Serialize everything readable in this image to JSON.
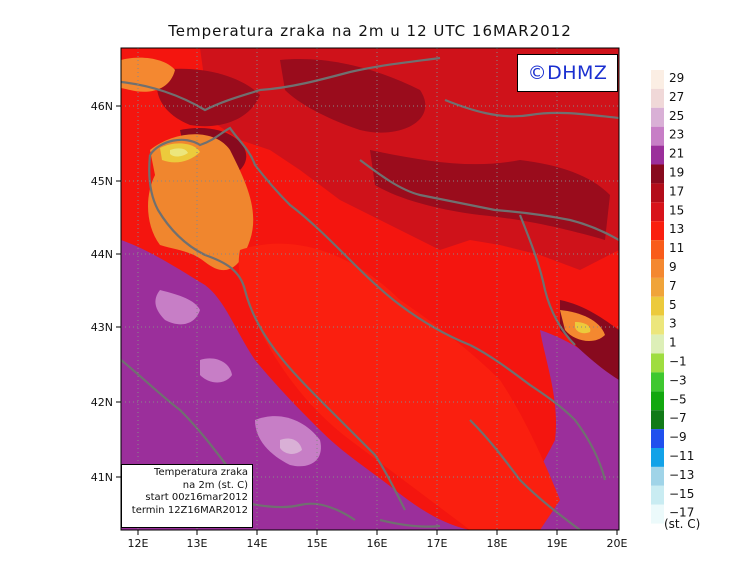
{
  "title": "Temperatura zraka na 2m u 12 UTC 16MAR2012",
  "logo": "©DHMZ",
  "info": {
    "line1": "Temperatura zraka",
    "line2": "na 2m (st. C)",
    "line3": "start 00z16mar2012",
    "line4": "termin 12Z16MAR2012"
  },
  "map": {
    "lon_labels": [
      "12E",
      "13E",
      "14E",
      "15E",
      "16E",
      "17E",
      "18E",
      "19E",
      "20E"
    ],
    "lat_labels": [
      "46N",
      "45N",
      "44N",
      "43N",
      "42N",
      "41N"
    ],
    "lon_range": [
      11.8,
      20.0
    ],
    "lat_range": [
      40.3,
      46.75
    ]
  },
  "legend": {
    "unit": "(st. C)",
    "levels": [
      {
        "label": "29",
        "color": "#fbeee4"
      },
      {
        "label": "27",
        "color": "#f0d8d8"
      },
      {
        "label": "25",
        "color": "#d9b0d6"
      },
      {
        "label": "23",
        "color": "#c77ec6"
      },
      {
        "label": "21",
        "color": "#9b2f9b"
      },
      {
        "label": "19",
        "color": "#880a1e"
      },
      {
        "label": "17",
        "color": "#b30d1a"
      },
      {
        "label": "15",
        "color": "#d8131b"
      },
      {
        "label": "13",
        "color": "#fa1f0f"
      },
      {
        "label": "11",
        "color": "#f95c1a"
      },
      {
        "label": "9",
        "color": "#f48830"
      },
      {
        "label": "7",
        "color": "#f0a43a"
      },
      {
        "label": "5",
        "color": "#ecca3c"
      },
      {
        "label": "3",
        "color": "#ece67c"
      },
      {
        "label": "1",
        "color": "#ddefb8"
      },
      {
        "label": "−1",
        "color": "#9fdd40"
      },
      {
        "label": "−3",
        "color": "#3fc830"
      },
      {
        "label": "−5",
        "color": "#12a80f"
      },
      {
        "label": "−7",
        "color": "#117a18"
      },
      {
        "label": "−9",
        "color": "#2050ee"
      },
      {
        "label": "−11",
        "color": "#12a2e8"
      },
      {
        "label": "−13",
        "color": "#a0d4e8"
      },
      {
        "label": "−15",
        "color": "#c9ecf2"
      },
      {
        "label": "−17",
        "color": "#ecfafb"
      }
    ]
  }
}
